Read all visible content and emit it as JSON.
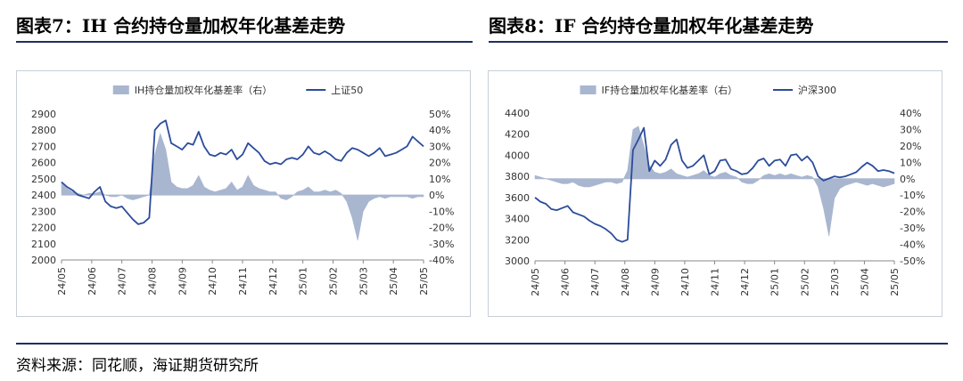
{
  "titles": {
    "left": "图表7：IH 合约持仓量加权年化基差走势",
    "right": "图表8：IF 合约持仓量加权年化基差走势"
  },
  "source": "资料来源：同花顺，海证期货研究所",
  "colors": {
    "line": "#2b4c9b",
    "area": "#a9b6d0",
    "rule": "#1f2f5f"
  },
  "chart_data": [
    {
      "type": "line+area",
      "legend": {
        "area": "IH持仓量加权年化基差率（右）",
        "line": "上证50",
        "placement": "top-center"
      },
      "x_ticks": [
        "24/05",
        "24/06",
        "24/07",
        "24/08",
        "24/09",
        "24/10",
        "24/11",
        "24/12",
        "25/01",
        "25/02",
        "25/03",
        "25/04",
        "25/05"
      ],
      "ylim_left": [
        2000,
        2900
      ],
      "y_ticks_left": [
        "2900",
        "2800",
        "2700",
        "2600",
        "2500",
        "2400",
        "2300",
        "2200",
        "2100",
        "2000"
      ],
      "ylim_right": [
        -40,
        50
      ],
      "y_ticks_right": [
        "50%",
        "40%",
        "30%",
        "20%",
        "10%",
        "0%",
        "-10%",
        "-20%",
        "-30%",
        "-40%"
      ],
      "line_series": {
        "name": "上证50",
        "values": [
          2480,
          2450,
          2430,
          2400,
          2390,
          2380,
          2420,
          2450,
          2360,
          2330,
          2320,
          2330,
          2290,
          2250,
          2220,
          2230,
          2260,
          2800,
          2840,
          2860,
          2720,
          2700,
          2680,
          2720,
          2710,
          2790,
          2700,
          2650,
          2640,
          2660,
          2650,
          2680,
          2620,
          2650,
          2720,
          2690,
          2660,
          2610,
          2590,
          2600,
          2590,
          2620,
          2630,
          2620,
          2650,
          2700,
          2660,
          2650,
          2670,
          2650,
          2620,
          2610,
          2660,
          2690,
          2680,
          2660,
          2640,
          2660,
          2690,
          2640,
          2650,
          2660,
          2680,
          2700,
          2760,
          2730,
          2700
        ]
      },
      "area_series": {
        "name": "IH持仓量加权年化基差率（右）",
        "values": [
          8,
          4,
          2,
          1,
          0,
          1,
          1,
          2,
          0,
          -1,
          -1,
          0,
          -2,
          -3,
          -2,
          -1,
          0,
          25,
          38,
          28,
          8,
          5,
          4,
          4,
          6,
          12,
          5,
          3,
          2,
          3,
          4,
          8,
          3,
          5,
          12,
          6,
          4,
          3,
          2,
          2,
          -2,
          -3,
          -1,
          2,
          3,
          5,
          2,
          2,
          3,
          2,
          3,
          1,
          -4,
          -14,
          -28,
          -10,
          -4,
          -2,
          -1,
          -2,
          -1,
          -1,
          -1,
          -1,
          -2,
          -1,
          -1
        ]
      }
    },
    {
      "type": "line+area",
      "legend": {
        "area": "IF持仓量加权年化基差率（右）",
        "line": "沪深300",
        "placement": "top-center"
      },
      "x_ticks": [
        "24/05",
        "24/06",
        "24/07",
        "24/08",
        "24/09",
        "24/10",
        "24/11",
        "24/12",
        "25/01",
        "25/02",
        "25/03",
        "25/04",
        "25/05"
      ],
      "ylim_left": [
        3000,
        4400
      ],
      "y_ticks_left": [
        "4400",
        "4200",
        "4000",
        "3800",
        "3600",
        "3400",
        "3200",
        "3000"
      ],
      "ylim_right": [
        -50,
        40
      ],
      "y_ticks_right": [
        "40%",
        "30%",
        "20%",
        "10%",
        "0%",
        "-10%",
        "-20%",
        "-30%",
        "-40%",
        "-50%"
      ],
      "line_series": {
        "name": "沪深300",
        "values": [
          3600,
          3560,
          3540,
          3490,
          3480,
          3500,
          3520,
          3460,
          3440,
          3420,
          3380,
          3350,
          3330,
          3300,
          3260,
          3200,
          3180,
          3200,
          4050,
          4150,
          4260,
          3850,
          3950,
          3900,
          3960,
          4100,
          4150,
          3950,
          3880,
          3900,
          3950,
          4000,
          3820,
          3850,
          3950,
          3960,
          3870,
          3850,
          3820,
          3830,
          3880,
          3950,
          3970,
          3900,
          3950,
          3960,
          3900,
          4000,
          4010,
          3950,
          3990,
          3930,
          3800,
          3760,
          3780,
          3800,
          3790,
          3800,
          3820,
          3840,
          3890,
          3930,
          3900,
          3850,
          3860,
          3850,
          3830
        ]
      },
      "area_series": {
        "name": "IF持仓量加权年化基差率（右）",
        "values": [
          2,
          1,
          0,
          -1,
          -2,
          -3,
          -3,
          -2,
          -4,
          -5,
          -5,
          -4,
          -3,
          -2,
          -2,
          -3,
          -2,
          5,
          30,
          32,
          20,
          8,
          4,
          3,
          4,
          6,
          3,
          2,
          1,
          2,
          3,
          5,
          2,
          1,
          3,
          4,
          2,
          1,
          -2,
          -3,
          -3,
          -1,
          2,
          3,
          2,
          3,
          2,
          3,
          2,
          1,
          2,
          1,
          -5,
          -18,
          -35,
          -12,
          -6,
          -4,
          -3,
          -2,
          -3,
          -4,
          -3,
          -4,
          -5,
          -4,
          -3
        ]
      }
    }
  ]
}
